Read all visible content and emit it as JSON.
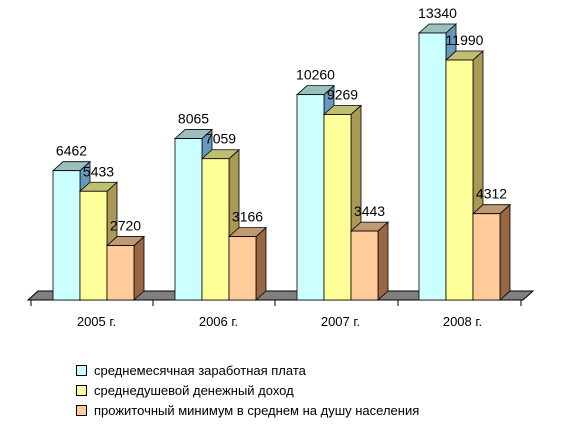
{
  "chart_data": {
    "type": "bar",
    "categories": [
      "2005 г.",
      "2006 г.",
      "2007 г.",
      "2008 г."
    ],
    "series": [
      {
        "name": "среднемесячная заработная плата",
        "values": [
          6462,
          8065,
          10260,
          13340
        ],
        "color": "#CCFFFF",
        "side_color": "#6699BB"
      },
      {
        "name": "среднедушевой денежный доход",
        "values": [
          5433,
          7059,
          9269,
          11990
        ],
        "color": "#FFFF99",
        "side_color": "#AA9955"
      },
      {
        "name": "прожиточный минимум в среднем на душу населения",
        "values": [
          2720,
          3166,
          3443,
          4312
        ],
        "color": "#FFCC99",
        "side_color": "#996644"
      }
    ],
    "value_labels": [
      [
        "6462",
        "8065",
        "10260",
        "13340"
      ],
      [
        "5433",
        "7059",
        "9269",
        "11990"
      ],
      [
        "2720",
        "3166",
        "3443",
        "4312"
      ]
    ],
    "ylim": [
      0,
      13340
    ],
    "grid": false,
    "legend_position": "bottom",
    "style": "3d-bar"
  }
}
